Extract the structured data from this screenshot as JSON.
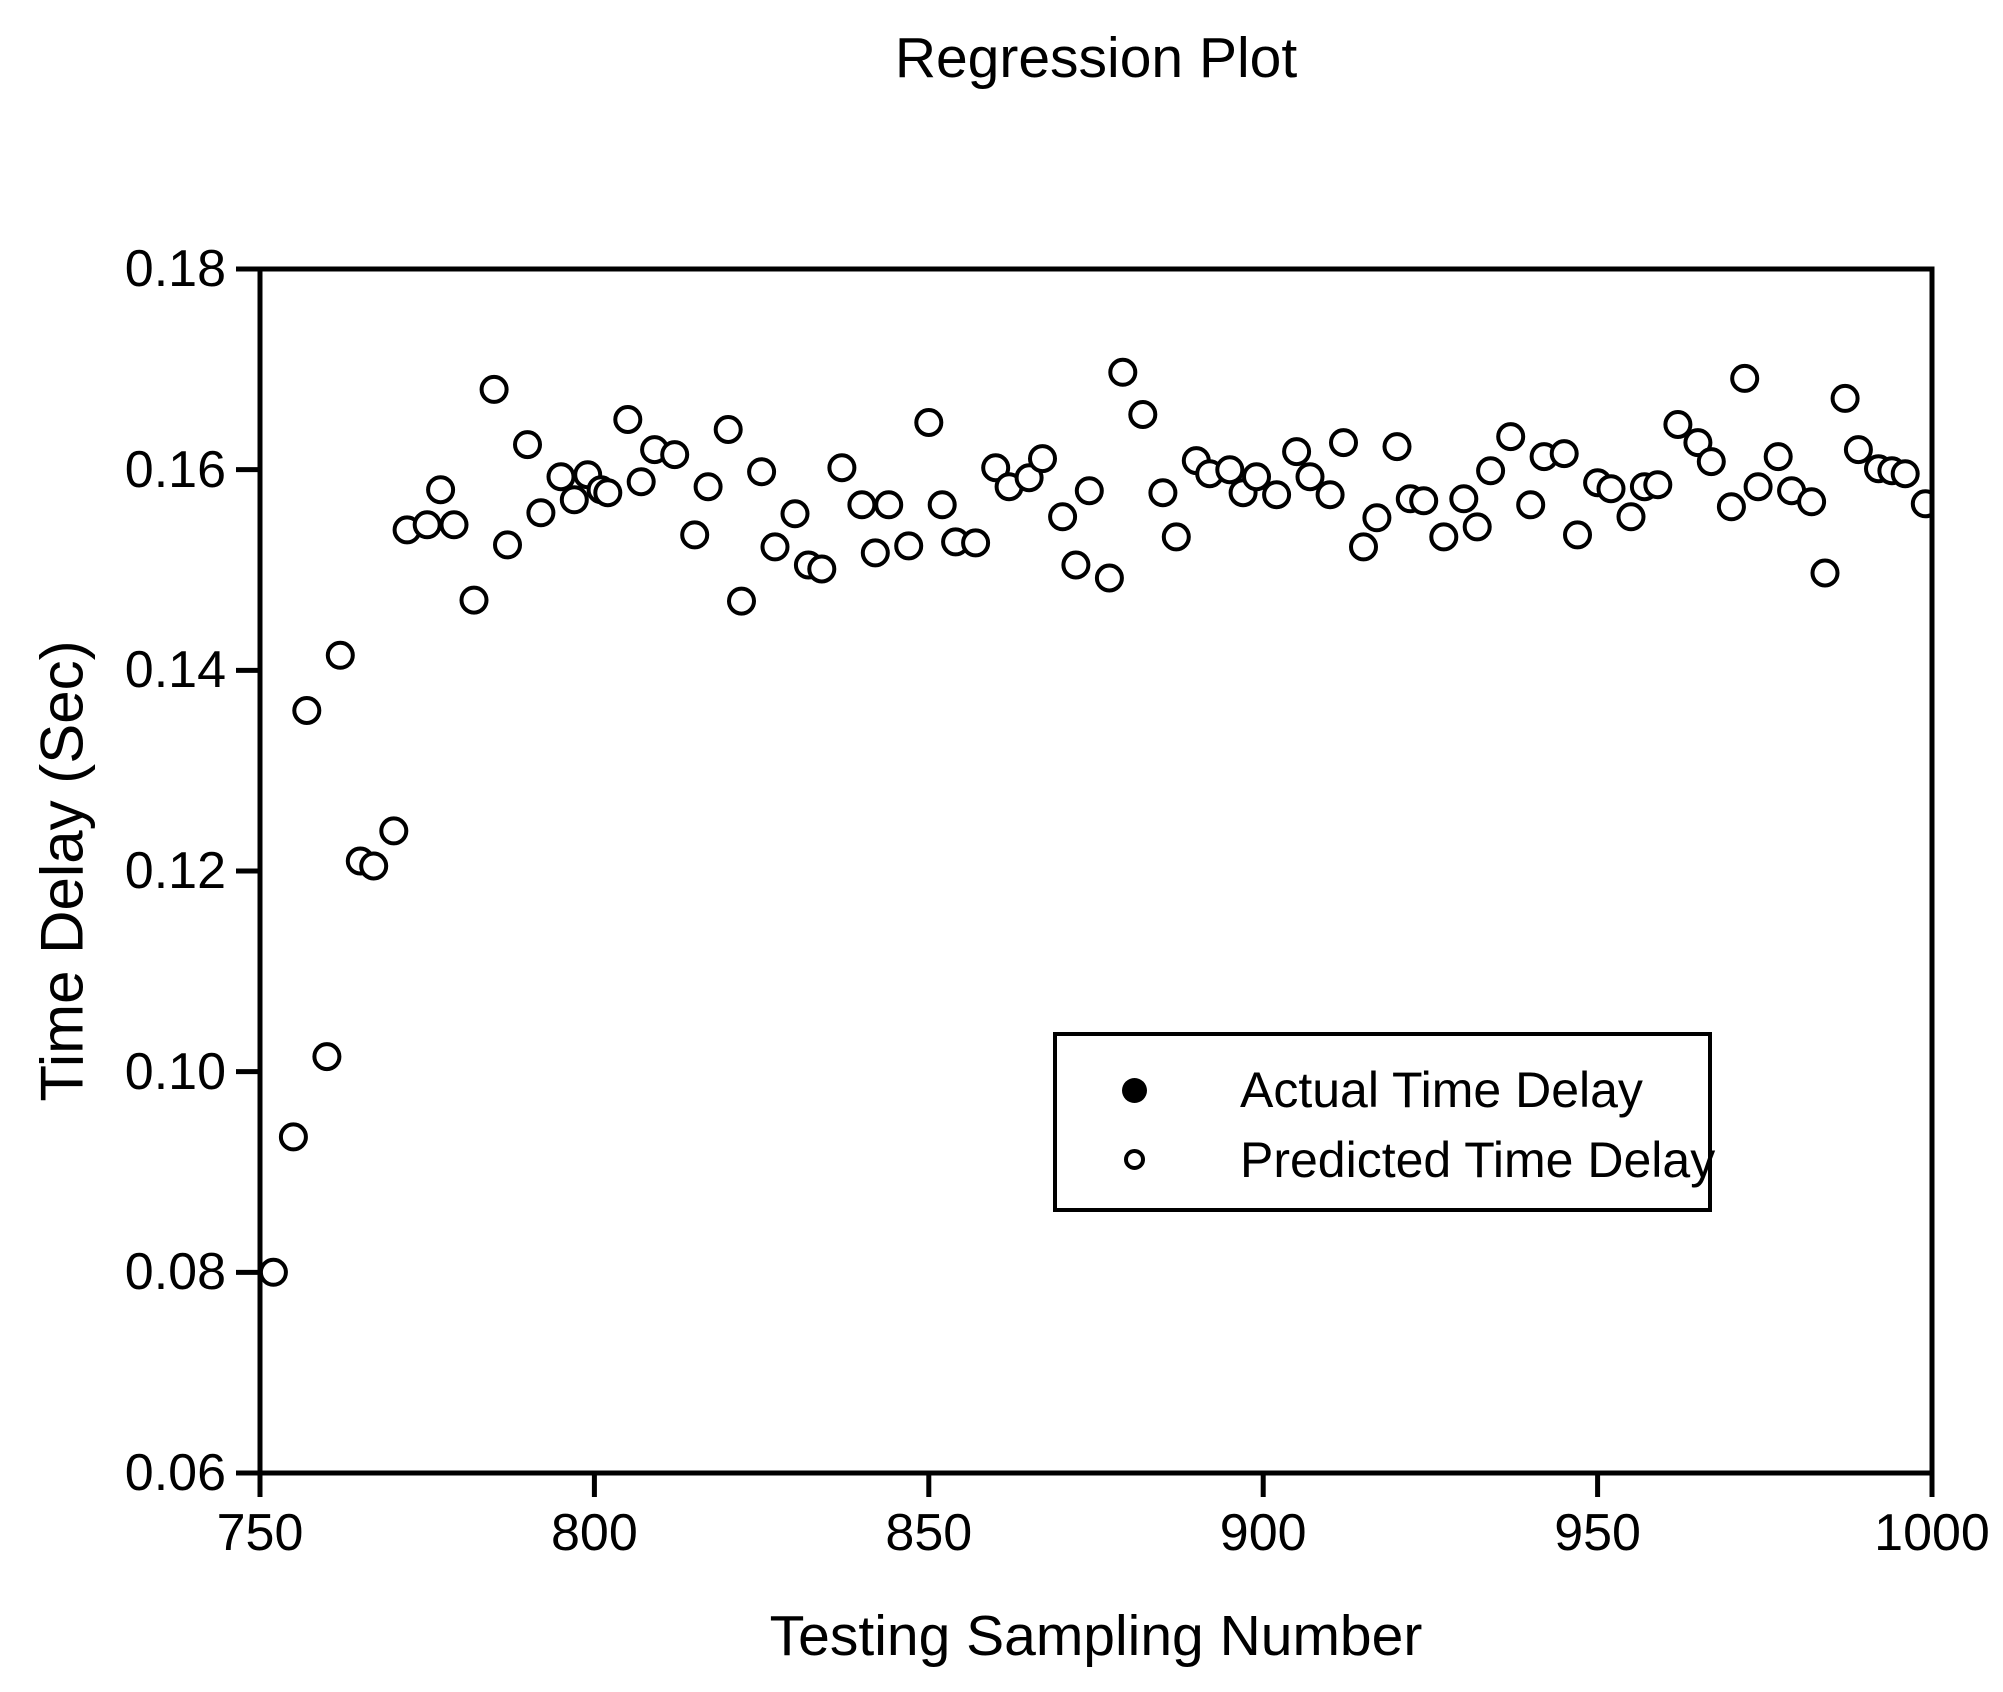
{
  "figure": {
    "background": "#ffffff",
    "axis_color": "#000000"
  },
  "chart_data": {
    "type": "scatter",
    "title": "Regression Plot",
    "xlabel": "Testing Sampling Number",
    "ylabel": "Time Delay (Sec)",
    "xlim": [
      750,
      1000
    ],
    "ylim": [
      0.06,
      0.18
    ],
    "xticks": [
      "750",
      "800",
      "850",
      "900",
      "950",
      "1000"
    ],
    "yticks": [
      "0.06",
      "0.08",
      "0.10",
      "0.12",
      "0.14",
      "0.16",
      "0.18"
    ],
    "grid": false,
    "legend_position": "inside-center-right",
    "legend": [
      {
        "label": "Actual Time Delay",
        "marker": "filled-circle",
        "color": "#000000"
      },
      {
        "label": "Predicted Time Delay",
        "marker": "open-circle",
        "color": "#000000"
      }
    ],
    "marker_style": {
      "stroke": "#000000",
      "open_fill": "#ffffff",
      "filled_fill": "#000000"
    },
    "series": [
      {
        "name": "Predicted Time Delay",
        "marker": "open-circle",
        "points": [
          [
            752,
            0.08
          ],
          [
            755,
            0.0935
          ],
          [
            757,
            0.136
          ],
          [
            760,
            0.1015
          ],
          [
            762,
            0.1415
          ],
          [
            765,
            0.121
          ],
          [
            767,
            0.1205
          ],
          [
            770,
            0.124
          ],
          [
            772,
            0.154
          ],
          [
            775,
            0.1545
          ],
          [
            777,
            0.158
          ],
          [
            779,
            0.1545
          ],
          [
            782,
            0.147
          ],
          [
            785,
            0.168
          ],
          [
            787,
            0.1525
          ],
          [
            790,
            0.1625
          ],
          [
            792,
            0.1557
          ],
          [
            795,
            0.1593
          ],
          [
            797,
            0.157
          ],
          [
            799,
            0.1595
          ],
          [
            801,
            0.158
          ],
          [
            802,
            0.1577
          ],
          [
            805,
            0.165
          ],
          [
            807,
            0.1588
          ],
          [
            809,
            0.162
          ],
          [
            812,
            0.1615
          ],
          [
            815,
            0.1535
          ],
          [
            817,
            0.1583
          ],
          [
            820,
            0.164
          ],
          [
            822,
            0.1469
          ],
          [
            825,
            0.1598
          ],
          [
            827,
            0.1523
          ],
          [
            830,
            0.1556
          ],
          [
            832,
            0.1505
          ],
          [
            834,
            0.1501
          ],
          [
            837,
            0.1602
          ],
          [
            840,
            0.1565
          ],
          [
            842,
            0.1517
          ],
          [
            844,
            0.1565
          ],
          [
            847,
            0.1524
          ],
          [
            850,
            0.1647
          ],
          [
            852,
            0.1565
          ],
          [
            854,
            0.1528
          ],
          [
            857,
            0.1527
          ],
          [
            860,
            0.1602
          ],
          [
            862,
            0.1583
          ],
          [
            865,
            0.1592
          ],
          [
            867,
            0.1611
          ],
          [
            870,
            0.1553
          ],
          [
            872,
            0.1505
          ],
          [
            874,
            0.1579
          ],
          [
            877,
            0.1492
          ],
          [
            879,
            0.1697
          ],
          [
            882,
            0.1655
          ],
          [
            885,
            0.1577
          ],
          [
            887,
            0.1533
          ],
          [
            890,
            0.1609
          ],
          [
            892,
            0.1596
          ],
          [
            895,
            0.16
          ],
          [
            897,
            0.1577
          ],
          [
            899,
            0.1593
          ],
          [
            902,
            0.1575
          ],
          [
            905,
            0.1618
          ],
          [
            907,
            0.1593
          ],
          [
            910,
            0.1575
          ],
          [
            912,
            0.1627
          ],
          [
            915,
            0.1523
          ],
          [
            917,
            0.1552
          ],
          [
            920,
            0.1623
          ],
          [
            922,
            0.1571
          ],
          [
            924,
            0.1569
          ],
          [
            927,
            0.1533
          ],
          [
            930,
            0.1571
          ],
          [
            932,
            0.1543
          ],
          [
            934,
            0.1599
          ],
          [
            937,
            0.1633
          ],
          [
            940,
            0.1565
          ],
          [
            942,
            0.1613
          ],
          [
            945,
            0.1616
          ],
          [
            947,
            0.1535
          ],
          [
            950,
            0.1587
          ],
          [
            952,
            0.1581
          ],
          [
            955,
            0.1553
          ],
          [
            957,
            0.1583
          ],
          [
            959,
            0.1585
          ],
          [
            962,
            0.1645
          ],
          [
            965,
            0.1627
          ],
          [
            967,
            0.1608
          ],
          [
            970,
            0.1563
          ],
          [
            972,
            0.1691
          ],
          [
            974,
            0.1583
          ],
          [
            977,
            0.1613
          ],
          [
            979,
            0.1579
          ],
          [
            982,
            0.1568
          ],
          [
            984,
            0.1497
          ],
          [
            987,
            0.1671
          ],
          [
            989,
            0.162
          ],
          [
            992,
            0.1601
          ],
          [
            994,
            0.1599
          ],
          [
            996,
            0.1596
          ],
          [
            999,
            0.1566
          ]
        ]
      }
    ]
  }
}
